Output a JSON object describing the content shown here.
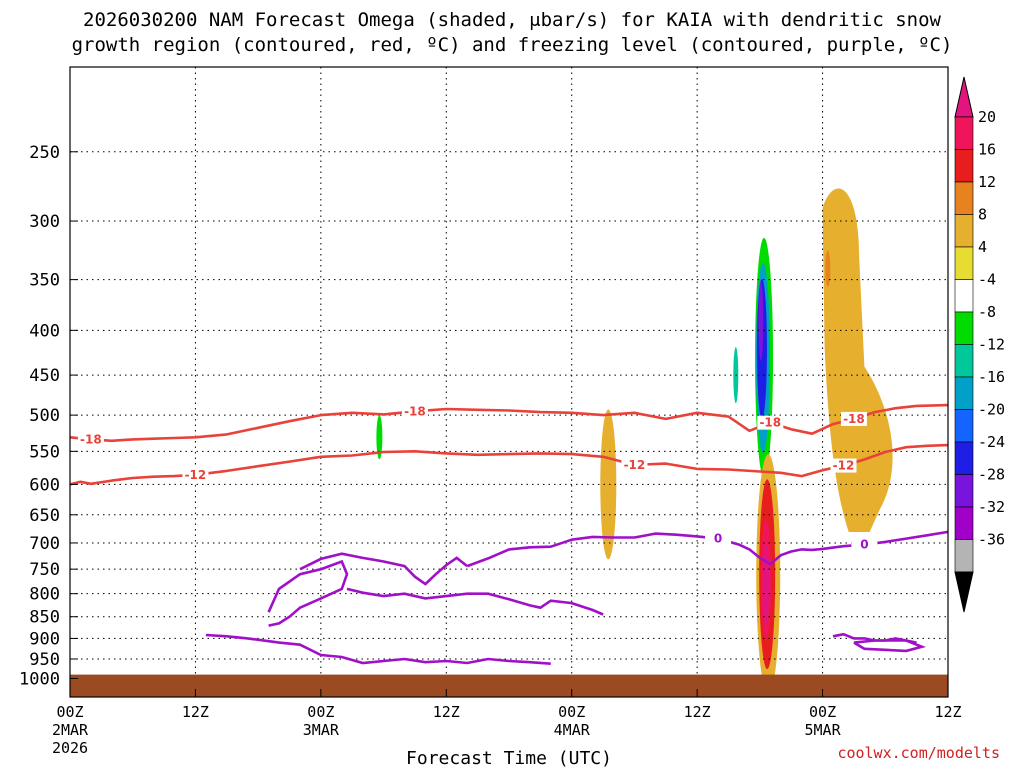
{
  "title_line1": "2026030200 NAM Forecast Omega (shaded, μbar/s) for KAIA with dendritic snow",
  "title_line2": "growth region (contoured, red, ºC) and freezing level (contoured, purple, ºC)",
  "credit": "coolwx.com/modelts",
  "chart_data": {
    "type": "heatmap",
    "xlabel": "Forecast Time (UTC)",
    "ylabel": "Pressure (hPa)",
    "xlim_hours": [
      0,
      84
    ],
    "ylim_hpa": [
      1050,
      200
    ],
    "y_scale": "log-pressure, inverted",
    "grid": true,
    "x_ticks": [
      {
        "hour": 0,
        "label": "00Z",
        "sub1": "2MAR",
        "sub2": "2026"
      },
      {
        "hour": 12,
        "label": "12Z",
        "sub1": "",
        "sub2": ""
      },
      {
        "hour": 24,
        "label": "00Z",
        "sub1": "3MAR",
        "sub2": ""
      },
      {
        "hour": 36,
        "label": "12Z",
        "sub1": "",
        "sub2": ""
      },
      {
        "hour": 48,
        "label": "00Z",
        "sub1": "4MAR",
        "sub2": ""
      },
      {
        "hour": 60,
        "label": "12Z",
        "sub1": "",
        "sub2": ""
      },
      {
        "hour": 72,
        "label": "00Z",
        "sub1": "5MAR",
        "sub2": ""
      },
      {
        "hour": 84,
        "label": "12Z",
        "sub1": "",
        "sub2": ""
      }
    ],
    "y_ticks": [
      250,
      300,
      350,
      400,
      450,
      500,
      550,
      600,
      650,
      700,
      750,
      800,
      850,
      900,
      950,
      1000
    ],
    "colorbar": {
      "labels": [
        "20",
        "16",
        "12",
        "8",
        "4",
        "-4",
        "-8",
        "-12",
        "-16",
        "-20",
        "-24",
        "-28",
        "-32",
        "-36"
      ],
      "colors": [
        "#f0145a",
        "#e81e1e",
        "#e8821e",
        "#e6af2d",
        "#e6dc32",
        "#ffffff",
        "#00dc00",
        "#00c89a",
        "#00a0c8",
        "#1464ff",
        "#1e1ee6",
        "#7814dc",
        "#a000c8",
        "#b4b4b4",
        "#000000"
      ],
      "top_triangle": "#e2147f",
      "bottom_triangle": "#000000"
    },
    "surface_color": "#9b4a22",
    "series": [
      {
        "name": "-18 ºC isotherm",
        "label": "-18",
        "color": "#e8423a",
        "x_hours": [
          0,
          2,
          4,
          6,
          8,
          10,
          12,
          15,
          18,
          21,
          24,
          27,
          30,
          33,
          36,
          39,
          42,
          45,
          48,
          51,
          54,
          57,
          60,
          63,
          65,
          67,
          69,
          71,
          73,
          75,
          77,
          79,
          81,
          84
        ],
        "p_hpa": [
          530,
          533,
          535,
          533,
          532,
          531,
          530,
          526,
          517,
          508,
          500,
          497,
          499,
          495,
          492,
          493,
          494,
          496,
          497,
          500,
          497,
          505,
          497,
          502,
          521,
          510,
          519,
          525,
          512,
          505,
          496,
          491,
          488,
          487
        ]
      },
      {
        "name": "-12 ºC isotherm",
        "label": "-12",
        "color": "#e8423a",
        "x_hours": [
          0,
          1,
          2,
          4,
          6,
          8,
          10,
          12,
          15,
          18,
          21,
          24,
          27,
          30,
          33,
          36,
          39,
          42,
          45,
          48,
          51,
          54,
          57,
          60,
          63,
          66,
          68,
          70,
          72,
          74,
          76,
          78,
          80,
          82,
          84
        ],
        "p_hpa": [
          600,
          596,
          599,
          594,
          590,
          588,
          587,
          585,
          579,
          572,
          565,
          558,
          556,
          551,
          550,
          553,
          555,
          554,
          553,
          554,
          558,
          570,
          568,
          576,
          577,
          580,
          582,
          587,
          578,
          571,
          562,
          551,
          544,
          542,
          541
        ]
      },
      {
        "name": "0 ºC freezing level",
        "label": "0",
        "color": "#a010c8",
        "x_hours": [
          38,
          40,
          42,
          44,
          46,
          48,
          50,
          52,
          54,
          56,
          58,
          60,
          62,
          64,
          65,
          66,
          67,
          68,
          69,
          70,
          71,
          72,
          74,
          76,
          78,
          80,
          82,
          84
        ],
        "p_hpa": [
          744,
          729,
          712,
          708,
          707,
          694,
          689,
          690,
          690,
          683,
          685,
          688,
          692,
          703,
          712,
          728,
          740,
          723,
          716,
          712,
          713,
          711,
          706,
          703,
          698,
          692,
          686,
          680
        ]
      }
    ],
    "omega_regions": [
      {
        "name": "green patch 12Z 4MAR upper",
        "value": -6
      },
      {
        "name": "strong ascent core ~16Z 4MAR",
        "value": -30
      },
      {
        "name": "descent maximum ~18Z 4MAR low levels",
        "value": 22
      },
      {
        "name": "weak descent after 00Z 5MAR",
        "value": 6
      },
      {
        "name": "green streaks 3MAR",
        "value": -6
      }
    ]
  }
}
